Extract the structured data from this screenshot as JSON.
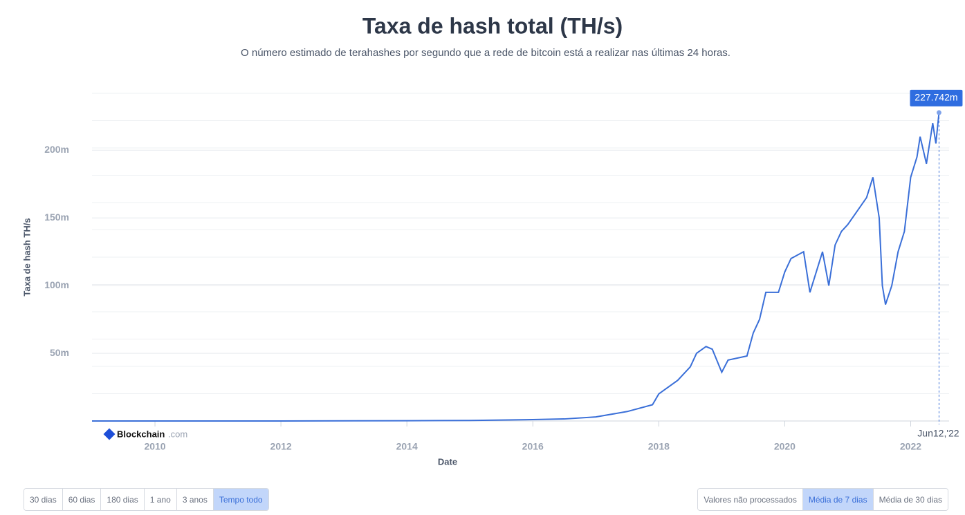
{
  "chart_data": {
    "type": "line",
    "title": "Taxa de hash total (TH/s)",
    "subtitle": "O número estimado de terahashes por segundo que a rede de bitcoin está a realizar nas últimas 24 horas.",
    "xlabel": "Date",
    "ylabel": "Taxa de hash TH/s",
    "xlim": [
      2009.0,
      2022.5
    ],
    "xticks": [
      2010,
      2012,
      2014,
      2016,
      2018,
      2020,
      2022
    ],
    "ylim": [
      0,
      242
    ],
    "yticks": [
      {
        "value": 50,
        "label": "50m"
      },
      {
        "value": 100,
        "label": "100m"
      },
      {
        "value": 150,
        "label": "150m"
      },
      {
        "value": 200,
        "label": "200m"
      }
    ],
    "grid": true,
    "series": [
      {
        "name": "Taxa de hash total",
        "color": "#3a6fd8",
        "x": [
          2009.0,
          2012.0,
          2014.0,
          2015.0,
          2016.0,
          2016.5,
          2017.0,
          2017.5,
          2017.9,
          2018.0,
          2018.3,
          2018.5,
          2018.6,
          2018.75,
          2018.85,
          2019.0,
          2019.1,
          2019.4,
          2019.5,
          2019.6,
          2019.7,
          2019.9,
          2020.0,
          2020.1,
          2020.3,
          2020.4,
          2020.5,
          2020.6,
          2020.7,
          2020.8,
          2020.9,
          2021.0,
          2021.15,
          2021.3,
          2021.4,
          2021.5,
          2021.55,
          2021.6,
          2021.7,
          2021.8,
          2021.9,
          2022.0,
          2022.1,
          2022.15,
          2022.25,
          2022.35,
          2022.4,
          2022.45
        ],
        "values": [
          0,
          0,
          0.2,
          0.4,
          1,
          1.5,
          3,
          7,
          12,
          20,
          30,
          40,
          50,
          55,
          53,
          36,
          45,
          48,
          65,
          75,
          95,
          95,
          110,
          120,
          125,
          95,
          110,
          125,
          100,
          130,
          140,
          145,
          155,
          165,
          180,
          150,
          100,
          86,
          100,
          125,
          140,
          180,
          195,
          210,
          190,
          220,
          205,
          227.742
        ]
      }
    ],
    "last_point": {
      "x": 2022.45,
      "value": 227.742,
      "label": "227.742m",
      "date_label": "Jun12,'22"
    },
    "logo": {
      "name": "Blockchain",
      "suffix": ".com"
    }
  },
  "controls": {
    "range_buttons": [
      "30 dias",
      "60 dias",
      "180 dias",
      "1 ano",
      "3 anos",
      "Tempo todo"
    ],
    "range_active": 5,
    "average_buttons": [
      "Valores não processados",
      "Média de 7 dias",
      "Média de 30 dias"
    ],
    "average_active": 1
  }
}
